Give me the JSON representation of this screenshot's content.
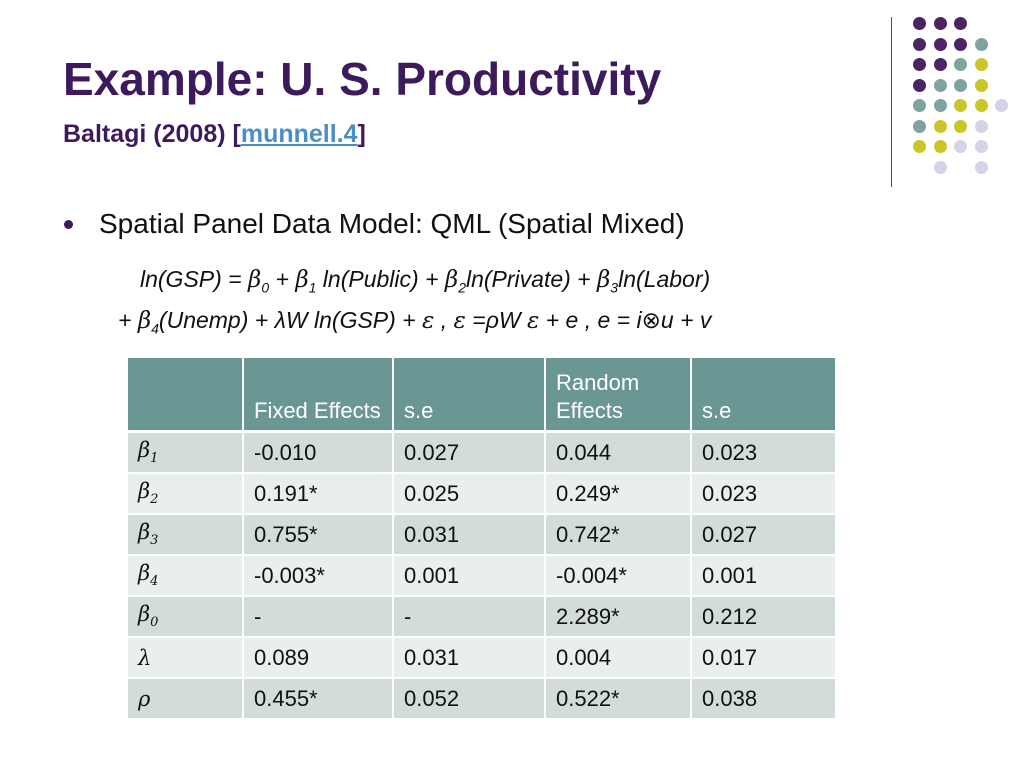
{
  "slide": {
    "title": "Example: U. S. Productivity",
    "subtitle": {
      "prefix": "Baltagi (2008) [",
      "link": "munnell.4",
      "suffix": "]"
    },
    "bullet": "Spatial Panel Data Model: QML (Spatial Mixed)"
  },
  "equation": {
    "lhs": "ln(GSP) = ",
    "beta": "β",
    "b0": "0",
    "plus1": " + ",
    "b1": "1",
    "t1": " ln(Public) + ",
    "b2": "2",
    "t2": "ln(Private) + ",
    "b3": "3",
    "t3": "ln(Labor)",
    "lead2": "+ ",
    "b4": "4",
    "t4": "(Unemp) + λW ln(GSP) + ",
    "eps": "ε",
    "t5": " , ",
    "t6": " =ρW ",
    "t7": " + e , e = i⊗u + v"
  },
  "table": {
    "headers": [
      "",
      "Fixed Effects",
      "s.e",
      "Random Effects",
      "s.e"
    ],
    "rows": [
      {
        "symbol": "β",
        "sub": "1",
        "fe": "-0.010",
        "fe_se": "0.027",
        "re": "0.044",
        "re_se": "0.023"
      },
      {
        "symbol": "β",
        "sub": "2",
        "fe": "0.191*",
        "fe_se": "0.025",
        "re": "0.249*",
        "re_se": "0.023"
      },
      {
        "symbol": "β",
        "sub": "3",
        "fe": "0.755*",
        "fe_se": "0.031",
        "re": "0.742*",
        "re_se": "0.027"
      },
      {
        "symbol": "β",
        "sub": "4",
        "fe": "-0.003*",
        "fe_se": "0.001",
        "re": "-0.004*",
        "re_se": "0.001"
      },
      {
        "symbol": "β",
        "sub": "0",
        "fe": "-",
        "fe_se": "-",
        "re": "2.289*",
        "re_se": "0.212"
      },
      {
        "symbol": "λ",
        "sub": "",
        "fe": "0.089",
        "fe_se": "0.031",
        "re": "0.004",
        "re_se": "0.017"
      },
      {
        "symbol": "ρ",
        "sub": "",
        "fe": "0.455*",
        "fe_se": "0.052",
        "re": "0.522*",
        "re_se": "0.038"
      }
    ]
  },
  "colors": {
    "title": "#3d1a5c",
    "link": "#4a8ec9",
    "header_bg": "#6a9694",
    "row_odd": "#d2dcdb",
    "row_even": "#e9eeee",
    "dot_purple": "#4b2463",
    "dot_teal": "#7fa3a1",
    "dot_olive": "#c9c62a",
    "dot_lavender": "#d4d4e6"
  },
  "decoration": {
    "dot_grid": [
      [
        "purple",
        "purple",
        "purple",
        null
      ],
      [
        "purple",
        "purple",
        "purple",
        "teal"
      ],
      [
        "purple",
        "purple",
        "teal",
        "olive"
      ],
      [
        "purple",
        "teal",
        "teal",
        "olive"
      ],
      [
        "teal",
        "teal",
        "olive",
        "olive",
        "lavender"
      ],
      [
        "teal",
        "olive",
        "olive",
        "lavender"
      ],
      [
        "olive",
        "olive",
        "lavender",
        "lavender"
      ],
      [
        null,
        "lavender",
        null,
        "lavender"
      ]
    ]
  }
}
